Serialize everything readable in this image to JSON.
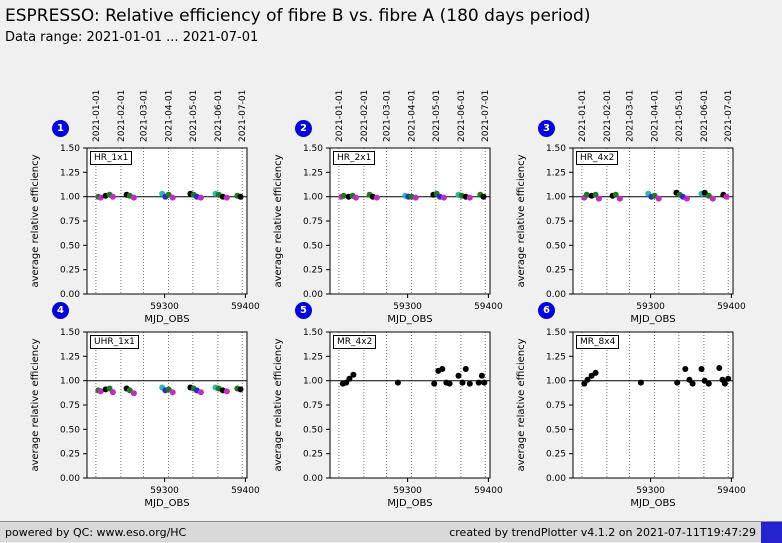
{
  "header": {
    "title": "ESPRESSO: Relative efficiency of fibre B vs. fibre A (180 days period)",
    "subtitle": "Data range: 2021-01-01 ... 2021-07-01"
  },
  "footer": {
    "left": "powered by QC: www.eso.org/HC",
    "right": "created by trendPlotter v4.1.2 on 2021-07-11T19:47:29"
  },
  "colors": {
    "green": "#1f7a1f",
    "black": "#000000",
    "cyan": "#2cb8b8",
    "magenta": "#c22cc2",
    "blue": "#2a2ad0"
  },
  "axes": {
    "ylabel": "average relative efficiency",
    "xlabel": "MJD_OBS",
    "ylim": [
      0.0,
      1.5
    ],
    "yticks": [
      0.0,
      0.25,
      0.5,
      0.75,
      1.0,
      1.25,
      1.5
    ],
    "xlim": [
      59204,
      59402
    ],
    "xticks": [
      59300,
      59400
    ],
    "grid": "vertical-dotted",
    "month_mjd": [
      59215,
      59246,
      59274,
      59305,
      59335,
      59366,
      59396
    ],
    "month_labels": [
      "2021-01-01",
      "2021-02-01",
      "2021-03-01",
      "2021-04-01",
      "2021-05-01",
      "2021-06-01",
      "2021-07-01"
    ],
    "refline": 1.0
  },
  "chart_data": [
    {
      "type": "scatter",
      "index": "1",
      "label": "HR_1x1",
      "top_labels": true,
      "points": [
        [
          59218,
          1.0,
          "green"
        ],
        [
          59221,
          0.99,
          "magenta"
        ],
        [
          59227,
          1.01,
          "black"
        ],
        [
          59232,
          1.02,
          "green"
        ],
        [
          59236,
          1.0,
          "magenta"
        ],
        [
          59253,
          1.02,
          "black"
        ],
        [
          59257,
          1.01,
          "green"
        ],
        [
          59262,
          0.99,
          "magenta"
        ],
        [
          59297,
          1.03,
          "cyan"
        ],
        [
          59301,
          1.0,
          "blue"
        ],
        [
          59305,
          1.02,
          "green"
        ],
        [
          59310,
          0.99,
          "magenta"
        ],
        [
          59332,
          1.03,
          "black"
        ],
        [
          59336,
          1.02,
          "green"
        ],
        [
          59340,
          1.0,
          "blue"
        ],
        [
          59345,
          0.99,
          "magenta"
        ],
        [
          59363,
          1.03,
          "cyan"
        ],
        [
          59367,
          1.02,
          "green"
        ],
        [
          59372,
          1.0,
          "black"
        ],
        [
          59377,
          0.99,
          "magenta"
        ],
        [
          59390,
          1.01,
          "green"
        ],
        [
          59394,
          1.0,
          "black"
        ]
      ]
    },
    {
      "type": "scatter",
      "index": "2",
      "label": "HR_2x1",
      "top_labels": true,
      "points": [
        [
          59218,
          1.0,
          "magenta"
        ],
        [
          59221,
          1.01,
          "green"
        ],
        [
          59227,
          1.0,
          "black"
        ],
        [
          59232,
          1.01,
          "green"
        ],
        [
          59236,
          0.99,
          "magenta"
        ],
        [
          59253,
          1.02,
          "green"
        ],
        [
          59257,
          1.0,
          "black"
        ],
        [
          59262,
          0.99,
          "magenta"
        ],
        [
          59297,
          1.01,
          "cyan"
        ],
        [
          59301,
          1.0,
          "blue"
        ],
        [
          59305,
          1.0,
          "green"
        ],
        [
          59310,
          0.99,
          "magenta"
        ],
        [
          59332,
          1.02,
          "black"
        ],
        [
          59336,
          1.03,
          "green"
        ],
        [
          59340,
          1.0,
          "blue"
        ],
        [
          59345,
          0.99,
          "magenta"
        ],
        [
          59363,
          1.02,
          "cyan"
        ],
        [
          59367,
          1.01,
          "green"
        ],
        [
          59372,
          1.0,
          "black"
        ],
        [
          59377,
          0.99,
          "magenta"
        ],
        [
          59390,
          1.02,
          "green"
        ],
        [
          59394,
          1.0,
          "black"
        ]
      ]
    },
    {
      "type": "scatter",
      "index": "3",
      "label": "HR_4x2",
      "top_labels": true,
      "points": [
        [
          59218,
          0.99,
          "magenta"
        ],
        [
          59221,
          1.02,
          "green"
        ],
        [
          59227,
          1.01,
          "black"
        ],
        [
          59232,
          1.02,
          "green"
        ],
        [
          59236,
          0.98,
          "magenta"
        ],
        [
          59253,
          1.01,
          "black"
        ],
        [
          59257,
          1.02,
          "green"
        ],
        [
          59262,
          0.98,
          "magenta"
        ],
        [
          59297,
          1.03,
          "cyan"
        ],
        [
          59301,
          1.0,
          "blue"
        ],
        [
          59305,
          1.01,
          "green"
        ],
        [
          59310,
          0.98,
          "magenta"
        ],
        [
          59332,
          1.04,
          "black"
        ],
        [
          59336,
          1.02,
          "green"
        ],
        [
          59340,
          1.0,
          "blue"
        ],
        [
          59345,
          0.98,
          "magenta"
        ],
        [
          59363,
          1.03,
          "cyan"
        ],
        [
          59367,
          1.04,
          "black"
        ],
        [
          59372,
          1.01,
          "green"
        ],
        [
          59377,
          0.98,
          "magenta"
        ],
        [
          59390,
          1.02,
          "black"
        ],
        [
          59394,
          1.0,
          "magenta"
        ]
      ]
    },
    {
      "type": "scatter",
      "index": "4",
      "label": "UHR_1x1",
      "top_labels": false,
      "points": [
        [
          59218,
          0.9,
          "green"
        ],
        [
          59221,
          0.89,
          "magenta"
        ],
        [
          59227,
          0.91,
          "black"
        ],
        [
          59232,
          0.92,
          "green"
        ],
        [
          59236,
          0.88,
          "magenta"
        ],
        [
          59253,
          0.92,
          "black"
        ],
        [
          59257,
          0.9,
          "green"
        ],
        [
          59262,
          0.87,
          "magenta"
        ],
        [
          59297,
          0.93,
          "cyan"
        ],
        [
          59301,
          0.9,
          "blue"
        ],
        [
          59305,
          0.91,
          "green"
        ],
        [
          59310,
          0.88,
          "magenta"
        ],
        [
          59332,
          0.93,
          "black"
        ],
        [
          59336,
          0.92,
          "green"
        ],
        [
          59340,
          0.9,
          "blue"
        ],
        [
          59345,
          0.88,
          "magenta"
        ],
        [
          59363,
          0.93,
          "cyan"
        ],
        [
          59367,
          0.92,
          "green"
        ],
        [
          59372,
          0.9,
          "black"
        ],
        [
          59377,
          0.89,
          "magenta"
        ],
        [
          59390,
          0.92,
          "green"
        ],
        [
          59394,
          0.91,
          "black"
        ]
      ]
    },
    {
      "type": "scatter",
      "index": "5",
      "label": "MR_4x2",
      "top_labels": false,
      "points": [
        [
          59220,
          0.97,
          "black"
        ],
        [
          59224,
          0.98,
          "black"
        ],
        [
          59228,
          1.02,
          "black"
        ],
        [
          59233,
          1.06,
          "black"
        ],
        [
          59288,
          0.98,
          "black"
        ],
        [
          59333,
          0.97,
          "black"
        ],
        [
          59338,
          1.1,
          "black"
        ],
        [
          59343,
          1.12,
          "black"
        ],
        [
          59348,
          0.98,
          "black"
        ],
        [
          59352,
          0.97,
          "black"
        ],
        [
          59363,
          1.05,
          "black"
        ],
        [
          59368,
          0.98,
          "black"
        ],
        [
          59372,
          1.12,
          "black"
        ],
        [
          59377,
          0.97,
          "black"
        ],
        [
          59388,
          0.98,
          "black"
        ],
        [
          59392,
          1.05,
          "black"
        ],
        [
          59395,
          0.98,
          "black"
        ]
      ]
    },
    {
      "type": "scatter",
      "index": "6",
      "label": "MR_8x4",
      "top_labels": false,
      "points": [
        [
          59218,
          0.97,
          "black"
        ],
        [
          59222,
          1.01,
          "black"
        ],
        [
          59227,
          1.05,
          "black"
        ],
        [
          59232,
          1.08,
          "black"
        ],
        [
          59288,
          0.98,
          "black"
        ],
        [
          59333,
          0.98,
          "black"
        ],
        [
          59343,
          1.12,
          "black"
        ],
        [
          59348,
          1.01,
          "black"
        ],
        [
          59352,
          0.97,
          "black"
        ],
        [
          59363,
          1.12,
          "black"
        ],
        [
          59367,
          1.0,
          "black"
        ],
        [
          59372,
          0.97,
          "black"
        ],
        [
          59385,
          1.13,
          "black"
        ],
        [
          59389,
          1.01,
          "black"
        ],
        [
          59392,
          0.97,
          "black"
        ],
        [
          59396,
          1.02,
          "black"
        ]
      ]
    }
  ]
}
